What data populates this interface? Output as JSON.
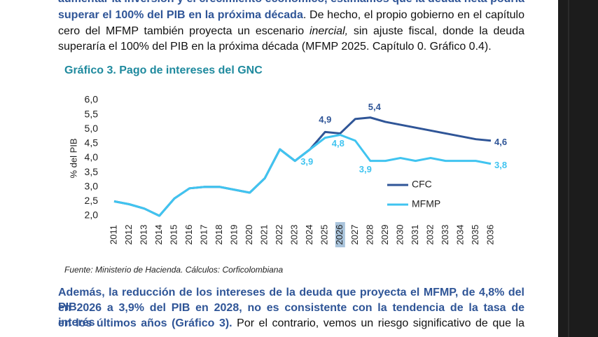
{
  "document": {
    "intro": [
      [
        {
          "text": "aumentar la inversión y el crecimiento económico, estimamos que la deuda neta podría",
          "style": "bold"
        }
      ],
      [
        {
          "text": "superar el 100% del PIB en la próxima década",
          "style": "bold"
        },
        {
          "text": ". De hecho, el propio gobierno en el capítulo",
          "style": "normal"
        }
      ],
      [
        {
          "text": "cero del MFMP también proyecta un escenario ",
          "style": "normal"
        },
        {
          "text": "inercial,",
          "style": "italic"
        },
        {
          "text": " sin ajuste fiscal, donde la deuda",
          "style": "normal"
        }
      ],
      [
        {
          "text": "superaría el 100% del PIB en la próxima década (MFMP 2025. Capítulo 0. Gráfico 0.4).",
          "style": "last"
        }
      ]
    ],
    "source": "Fuente: Ministerio de Hacienda. Cálculos: Corficolombiana",
    "closing": [
      [
        {
          "text": "Además, la reducción de los intereses de la deuda que proyecta el MFMP, de 4,8% del PIB",
          "style": "bold"
        }
      ],
      [
        {
          "text": "en 2026 a 3,9% del PIB en 2028, no es consistente con la tendencia de la tasa de interés",
          "style": "bold"
        }
      ],
      [
        {
          "text": "en los últimos años (Gráfico 3).",
          "style": "bold"
        },
        {
          "text": " Por el contrario, vemos un riesgo significativo de que la",
          "style": "normal"
        }
      ]
    ]
  },
  "chart_data": {
    "type": "line",
    "title": "Gráfico 3. Pago de intereses del GNC",
    "y_label": "% del PIB",
    "categories": [
      "2011",
      "2012",
      "2013",
      "2014",
      "2015",
      "2016",
      "2017",
      "2018",
      "2019",
      "2020",
      "2021",
      "2022",
      "2023",
      "2024",
      "2025",
      "2026",
      "2027",
      "2028",
      "2029",
      "2030",
      "2031",
      "2032",
      "2033",
      "2034",
      "2035",
      "2036"
    ],
    "highlight_category": "2026",
    "series": [
      {
        "name": "CFC",
        "color": "#2f5597",
        "values": [
          2.5,
          2.4,
          2.25,
          2.0,
          2.6,
          2.95,
          3.0,
          3.0,
          2.9,
          2.8,
          3.3,
          4.3,
          3.9,
          4.3,
          4.9,
          4.85,
          5.35,
          5.4,
          5.25,
          5.15,
          5.05,
          4.95,
          4.85,
          4.75,
          4.65,
          4.6
        ],
        "value_labels": [
          null,
          null,
          null,
          null,
          null,
          null,
          null,
          null,
          null,
          null,
          null,
          null,
          null,
          null,
          "4,9",
          null,
          null,
          "5,4",
          null,
          null,
          null,
          null,
          null,
          null,
          null,
          "4,6"
        ]
      },
      {
        "name": "MFMP",
        "color": "#40c4f0",
        "values": [
          2.5,
          2.4,
          2.25,
          2.0,
          2.6,
          2.95,
          3.0,
          3.0,
          2.9,
          2.8,
          3.3,
          4.3,
          3.9,
          4.3,
          4.7,
          4.8,
          4.6,
          3.9,
          3.9,
          4.0,
          3.9,
          4.0,
          3.9,
          3.9,
          3.9,
          3.8
        ],
        "value_labels": [
          null,
          null,
          null,
          null,
          null,
          null,
          null,
          null,
          null,
          null,
          null,
          null,
          "3,9",
          null,
          null,
          "4,8",
          null,
          "3,9",
          null,
          null,
          null,
          null,
          null,
          null,
          null,
          "3,8"
        ]
      }
    ],
    "ylim": [
      2.0,
      6.0
    ],
    "yticks": [
      {
        "value": 2.0,
        "label": "2,0"
      },
      {
        "value": 2.5,
        "label": "2,5"
      },
      {
        "value": 3.0,
        "label": "3,0"
      },
      {
        "value": 3.5,
        "label": "3,5"
      },
      {
        "value": 4.0,
        "label": "4,0"
      },
      {
        "value": 4.5,
        "label": "4,5"
      },
      {
        "value": 5.0,
        "label": "5,0"
      },
      {
        "value": 5.5,
        "label": "5,5"
      },
      {
        "value": 6.0,
        "label": "6,0"
      }
    ],
    "legend": "right"
  }
}
